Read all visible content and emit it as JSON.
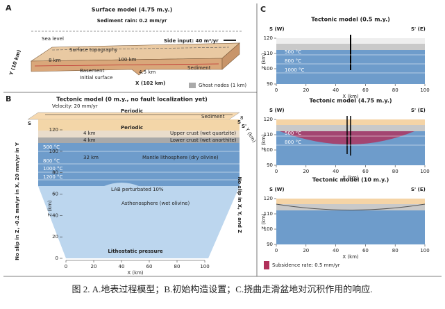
{
  "panel_a": {
    "label": "A",
    "title": "Surface model (4.75 m.y.)",
    "subtitle": "Sediment rain: 0.2 mm/yr",
    "sea_level": "Sea level",
    "side_input": "Side input: 40 m²/yr",
    "surface_topography": "Surface topography",
    "dim_8": "8 km",
    "dim_100": "100 km",
    "dim_45": "4.5 km",
    "sediment": "Sediment",
    "basement": "Basement",
    "initial_surface": "Initial surface",
    "y_axis": "Y (10 km)",
    "x_axis": "X (102 km)",
    "ghost_nodes": "Ghost nodes (1 km)"
  },
  "panel_b": {
    "label": "B",
    "title": "Tectonic model (0 m.y., no fault localization yet)",
    "velocity": "Velocity: 20 mm/yr",
    "periodic_top": "Periodic",
    "periodic_mid": "Periodic",
    "sediment": "Sediment",
    "s_left": "S",
    "s_right": "S",
    "s_prime": "S'",
    "y_tick": "8",
    "y_axis": "Y (km)",
    "km_4a": "4 km",
    "km_4b": "4 km",
    "km_32": "32 km",
    "upper_crust": "Upper crust (wet quartzite)",
    "lower_crust": "Lower crust (wet anorthite)",
    "mantle": "Mantle lithosphere (dry olivine)",
    "iso_500": "500 °C",
    "iso_800": "800 °C",
    "iso_1000": "1000 °C",
    "iso_1200": "1200 °C",
    "lab": "LAB perturbated 10%",
    "asthenosphere": "Asthenosphere (wet olivine)",
    "lithostatic": "Lithostatic pressure",
    "left_bc": "No slip in Z, -0.2 mm/yr in X, 20 mm/yr in Y",
    "right_bc": "No slip in X, Y, and Z",
    "z_axis": "Z (km)",
    "x_axis": "X (km)",
    "zticks": [
      120,
      100,
      80,
      60,
      40,
      20,
      0
    ],
    "xticks": [
      0,
      20,
      40,
      60,
      80,
      100
    ]
  },
  "panel_c": {
    "label": "C",
    "plots": [
      {
        "title": "Tectonic model (0.5 m.y.)",
        "left": "S (W)",
        "right": "S' (E)",
        "isotherms": [
          "500 °C",
          "800 °C",
          "1000 °C"
        ],
        "z_axis": "Z (km)",
        "x_axis": "X (km)",
        "zticks": [
          120,
          110,
          100,
          90
        ],
        "xticks": [
          0,
          20,
          40,
          60,
          80,
          100
        ]
      },
      {
        "title": "Tectonic model (4.75 m.y.)",
        "left": "S (W)",
        "right": "S' (E)",
        "isotherms": [
          "500 °C",
          "800 °C"
        ],
        "z_axis": "Z (km)",
        "x_axis": "X (km)",
        "zticks": [
          120,
          110,
          100,
          90
        ],
        "xticks": [
          0,
          20,
          40,
          60,
          80,
          100
        ]
      },
      {
        "title": "Tectonic model (10 m.y.)",
        "left": "S (W)",
        "right": "S' (E)",
        "isotherms": [],
        "z_axis": "Z (km)",
        "x_axis": "X (km)",
        "zticks": [
          120,
          110,
          100,
          90
        ],
        "xticks": [
          0,
          20,
          40,
          60,
          80,
          100
        ]
      }
    ],
    "subsidence": "Subsidence rate: 0.5 mm/yr"
  },
  "caption": "图 2. A.地表过程模型；B.初始构造设置；C.挠曲走滑盆地对沉积作用的响应."
}
